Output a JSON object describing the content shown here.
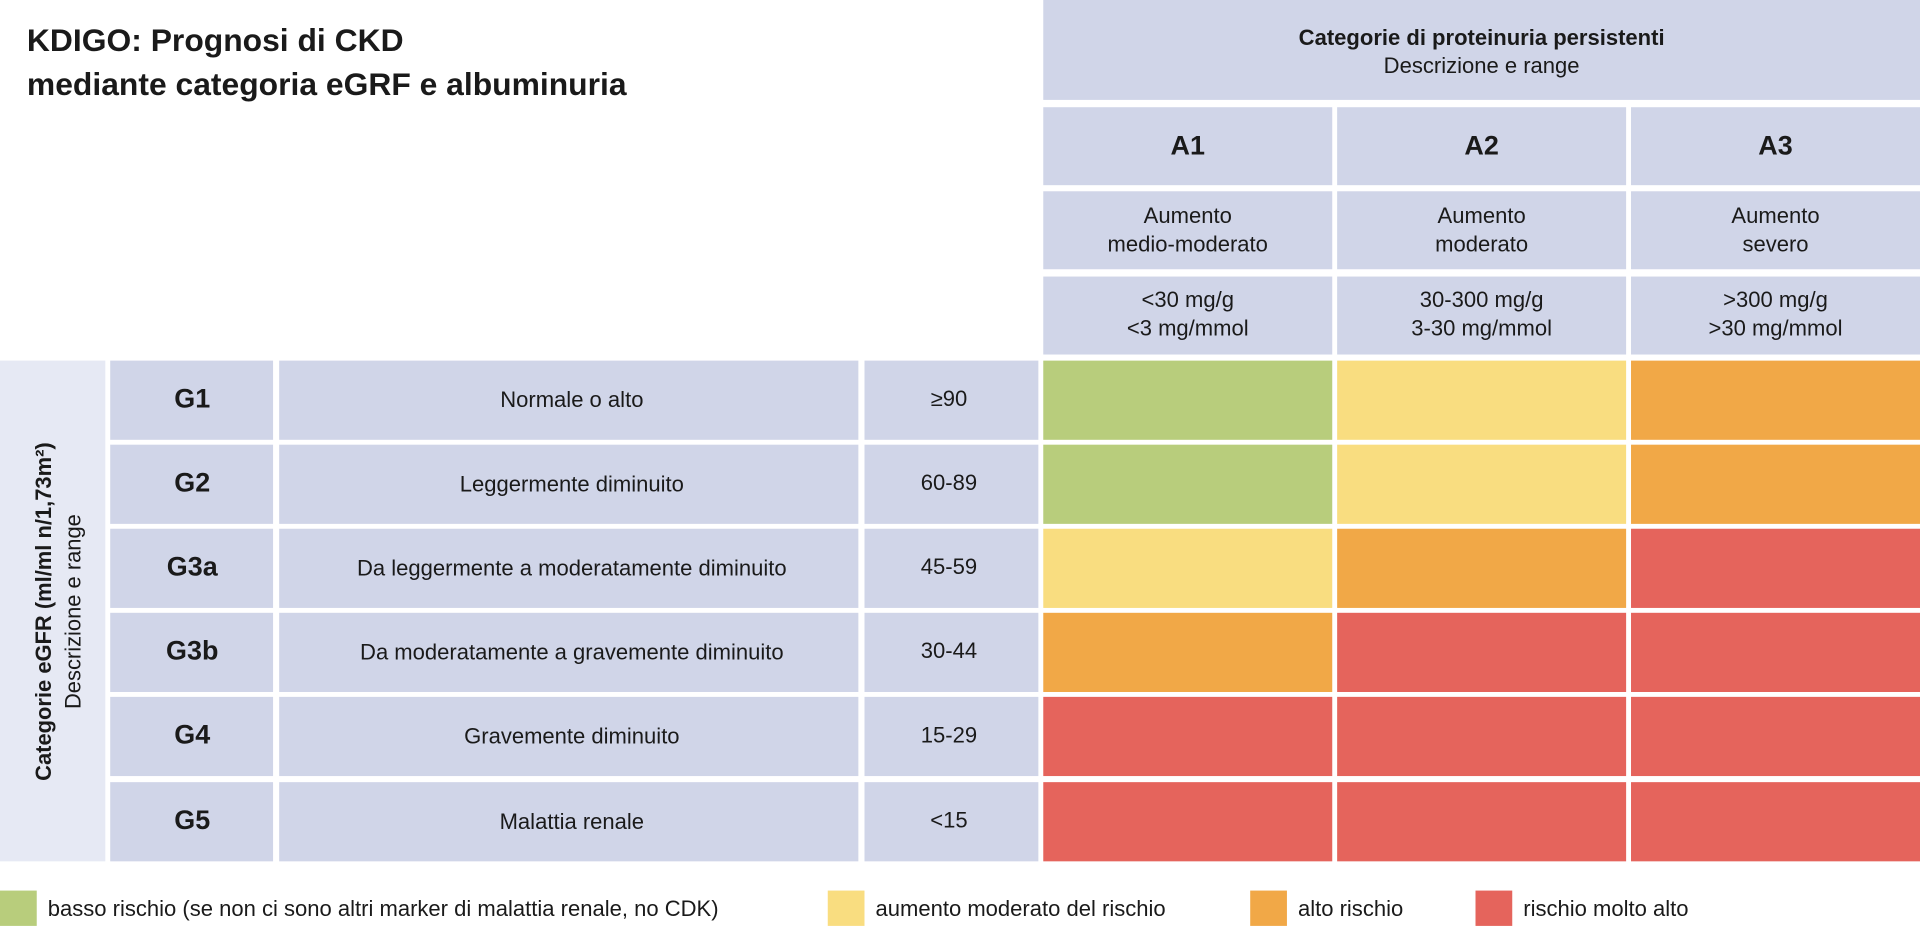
{
  "title": [
    "KDIGO: Prognosi di CKD",
    "mediante categoria eGRF e albuminuria"
  ],
  "albuminuria_header": {
    "title": "Categorie di proteinuria persistenti",
    "subtitle": "Descrizione e range"
  },
  "egfr_header": {
    "title": "Categorie eGFR (ml/ml n/1,73m²)",
    "subtitle": "Descrizione e range"
  },
  "columns": [
    {
      "code": "A1",
      "description": [
        "Aumento",
        "medio-moderato"
      ],
      "range": [
        "<30 mg/g",
        "<3 mg/mmol"
      ]
    },
    {
      "code": "A2",
      "description": [
        "Aumento",
        "moderato"
      ],
      "range": [
        "30-300 mg/g",
        "3-30 mg/mmol"
      ]
    },
    {
      "code": "A3",
      "description": [
        "Aumento",
        "severo"
      ],
      "range": [
        ">300 mg/g",
        ">30 mg/mmol"
      ]
    }
  ],
  "rows": [
    {
      "code": "G1",
      "description": "Normale o alto",
      "range": "≥90",
      "cells": [
        "#b8cd7c",
        "#f9dd80",
        "#f1a847"
      ]
    },
    {
      "code": "G2",
      "description": "Leggermente diminuito",
      "range": "60-89",
      "cells": [
        "#b8cd7c",
        "#f9dd80",
        "#f1a847"
      ]
    },
    {
      "code": "G3a",
      "description": "Da leggermente a moderatamente diminuito",
      "range": "45-59",
      "cells": [
        "#f9dd80",
        "#f1a847",
        "#e5645c"
      ]
    },
    {
      "code": "G3b",
      "description": "Da moderatamente a gravemente diminuito",
      "range": "30-44",
      "cells": [
        "#f1a847",
        "#e5645c",
        "#e5645c"
      ]
    },
    {
      "code": "G4",
      "description": "Gravemente diminuito",
      "range": "15-29",
      "cells": [
        "#e5645c",
        "#e5645c",
        "#e5645c"
      ]
    },
    {
      "code": "G5",
      "description": "Malattia renale",
      "range": "<15",
      "cells": [
        "#e5645c",
        "#e5645c",
        "#e5645c"
      ]
    }
  ],
  "legend": [
    {
      "color": "#b8cd7c",
      "label": "basso rischio (se non ci sono altri marker di malattia renale, no CDK)"
    },
    {
      "color": "#f9dd80",
      "label": "aumento moderato del rischio"
    },
    {
      "color": "#f1a847",
      "label": "alto rischio"
    },
    {
      "color": "#e5645c",
      "label": "rischio molto alto"
    }
  ]
}
